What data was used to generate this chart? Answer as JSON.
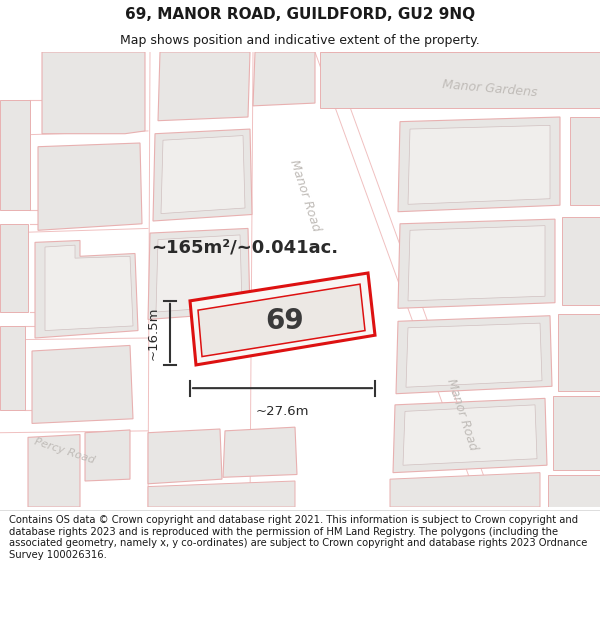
{
  "title": "69, MANOR ROAD, GUILDFORD, GU2 9NQ",
  "subtitle": "Map shows position and indicative extent of the property.",
  "footer": "Contains OS data © Crown copyright and database right 2021. This information is subject to Crown copyright and database rights 2023 and is reproduced with the permission of HM Land Registry. The polygons (including the associated geometry, namely x, y co-ordinates) are subject to Crown copyright and database rights 2023 Ordnance Survey 100026316.",
  "road_label_1": "Manor Gardens",
  "road_label_2": "Manor Road",
  "road_label_3": "Manor Road",
  "road_label_4": "Percy Road",
  "area_label": "~165m²/~0.041ac.",
  "plot_label": "69",
  "dim_width": "~27.6m",
  "dim_height": "~16.5m",
  "map_bg": "#f7f6f4",
  "bld_fill": "#e8e6e4",
  "bld_edge": "#e8b0b0",
  "bld_edge_dark": "#d0c0c0",
  "highlight_fill": "#f8f6f4",
  "highlight_edge": "#dd1111",
  "road_label_color": "#c0bcb8",
  "title_fontsize": 11,
  "subtitle_fontsize": 9,
  "footer_fontsize": 7.2
}
